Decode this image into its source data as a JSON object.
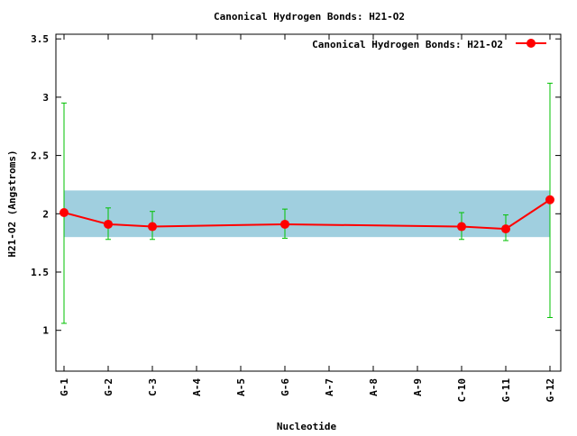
{
  "chart_data": {
    "type": "line",
    "title": "Canonical Hydrogen Bonds: H21-O2",
    "xlabel": "Nucleotide",
    "ylabel": "H21-O2 (Angstroms)",
    "categories": [
      "G-1",
      "G-2",
      "C-3",
      "A-4",
      "A-5",
      "G-6",
      "A-7",
      "A-8",
      "A-9",
      "C-10",
      "G-11",
      "G-12"
    ],
    "ylim": [
      0.65,
      3.54
    ],
    "yticks": [
      1,
      1.5,
      2,
      2.5,
      3,
      3.5
    ],
    "ytick_labels": [
      "1",
      "1.5",
      "2",
      "2.5",
      "3",
      "3.5"
    ],
    "grid": false,
    "legend_position": "top-right",
    "reference_band": {
      "low": 1.8,
      "high": 2.2,
      "color": "#a0cfdf"
    },
    "series": [
      {
        "name": "Canonical Hydrogen Bonds: H21-O2",
        "color": "#ff0000",
        "error_color": "#00c000",
        "values": [
          2.01,
          1.91,
          1.89,
          null,
          null,
          1.91,
          null,
          null,
          null,
          1.89,
          1.87,
          2.12
        ],
        "err_low": [
          1.06,
          1.78,
          1.78,
          null,
          null,
          1.79,
          null,
          null,
          null,
          1.78,
          1.77,
          1.11
        ],
        "err_high": [
          2.95,
          2.05,
          2.02,
          null,
          null,
          2.04,
          null,
          null,
          null,
          2.01,
          1.99,
          3.12
        ]
      }
    ]
  }
}
